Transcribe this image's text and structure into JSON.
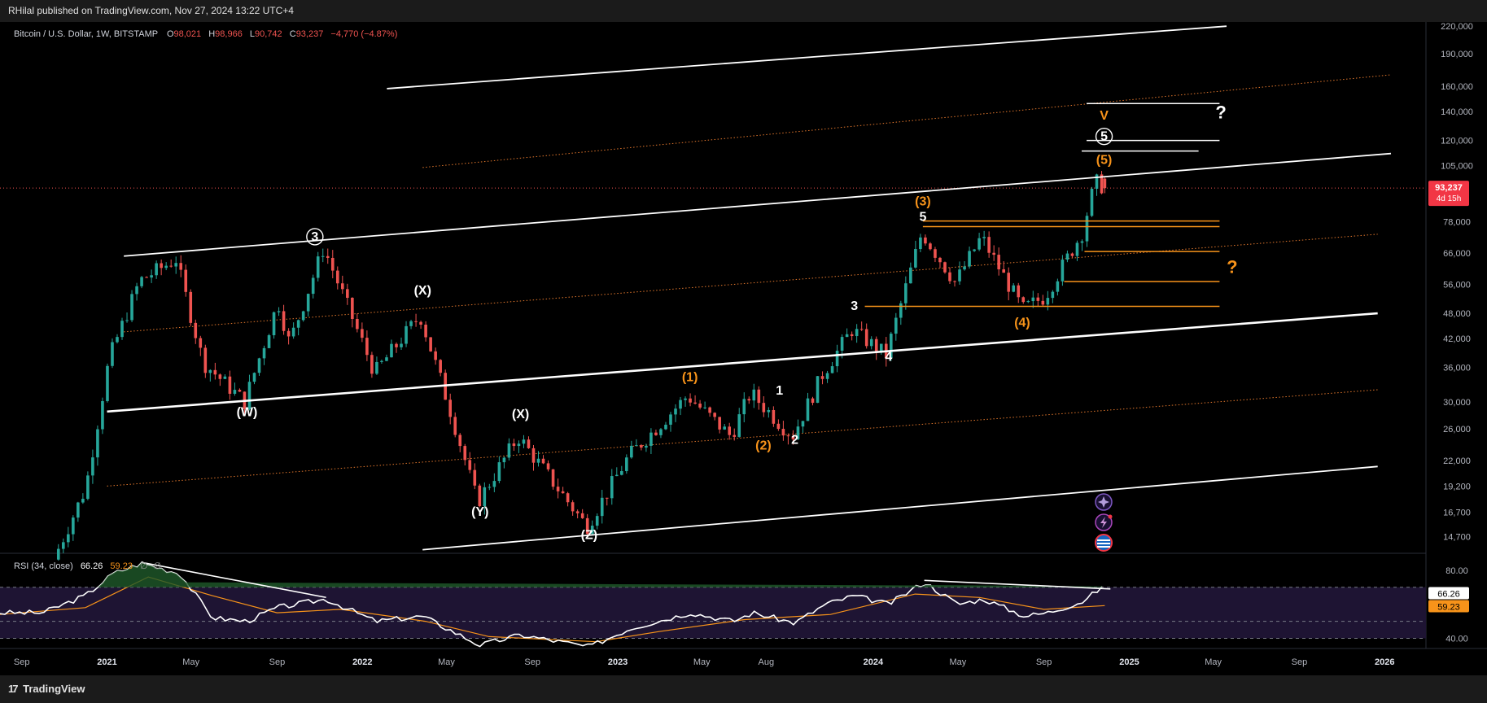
{
  "header": {
    "published": "RHilal published on TradingView.com, Nov 27, 2024 13:22 UTC+4"
  },
  "footer": {
    "brand": "TradingView",
    "logo_icon": "tradingview-logo-icon"
  },
  "legend": {
    "symbol": "Bitcoin / U.S. Dollar, 1W, BITSTAMP",
    "o_label": "O",
    "o": "98,021",
    "h_label": "H",
    "h": "98,966",
    "l_label": "L",
    "l": "90,742",
    "c_label": "C",
    "c": "93,237",
    "change": "−4,770 (−4.87%)"
  },
  "price_badge": {
    "value": "93,237",
    "countdown": "4d 15h"
  },
  "rsi_panel": {
    "label": "RSI (34, close)",
    "rsi": "66.26",
    "ma": "59.23",
    "extra1": "∅",
    "extra2": "∅",
    "rsi_badge": "66.26",
    "ma_badge": "59.23"
  },
  "colors": {
    "up": "#26a69a",
    "down": "#ef5350",
    "wave_orange": "#f7931a",
    "channel": "#ffffff",
    "dotted": "#e0762c",
    "rsi_line": "#ffffff",
    "rsi_ma": "#f7931a",
    "badge_red": "#f23645"
  },
  "icons": [
    "event-crypto-icon",
    "event-lightning-icon",
    "event-us-flag-icon"
  ],
  "chart_data": {
    "type": "candlestick",
    "symbol": "Bitcoin / U.S. Dollar",
    "interval": "1W",
    "y_scale": "log",
    "ylim": [
      13500,
      225000
    ],
    "x_range": [
      "2020-08-01",
      "2026-03-01"
    ],
    "y_ticks": [
      "220,000",
      "190,000",
      "160,000",
      "140,000",
      "120,000",
      "105,000",
      "93,237",
      "78,000",
      "66,000",
      "56,000",
      "48,000",
      "42,000",
      "36,000",
      "30,000",
      "26,000",
      "22,000",
      "19,200",
      "16,700",
      "14,700"
    ],
    "x_ticks": [
      "Sep",
      "2021",
      "May",
      "Sep",
      "2022",
      "May",
      "Sep",
      "2023",
      "May",
      "Aug",
      "2024",
      "May",
      "Sep",
      "2025",
      "May",
      "Sep",
      "2026"
    ],
    "price_path": [
      {
        "date": "2020-10-20",
        "price": 13000
      },
      {
        "date": "2020-12-05",
        "price": 19000
      },
      {
        "date": "2021-01-08",
        "price": 38000
      },
      {
        "date": "2021-02-20",
        "price": 57000
      },
      {
        "date": "2021-04-13",
        "price": 64000
      },
      {
        "date": "2021-05-22",
        "price": 37000
      },
      {
        "date": "2021-07-20",
        "price": 30000
      },
      {
        "date": "2021-09-06",
        "price": 51000
      },
      {
        "date": "2021-09-22",
        "price": 41000
      },
      {
        "date": "2021-11-10",
        "price": 68000
      },
      {
        "date": "2022-01-22",
        "price": 35000
      },
      {
        "date": "2022-03-28",
        "price": 47500
      },
      {
        "date": "2022-05-12",
        "price": 28000
      },
      {
        "date": "2022-06-18",
        "price": 17600
      },
      {
        "date": "2022-08-15",
        "price": 25000
      },
      {
        "date": "2022-11-21",
        "price": 15500
      },
      {
        "date": "2023-01-20",
        "price": 22500
      },
      {
        "date": "2023-04-14",
        "price": 31000
      },
      {
        "date": "2023-06-15",
        "price": 25000
      },
      {
        "date": "2023-07-13",
        "price": 31500
      },
      {
        "date": "2023-09-11",
        "price": 25000
      },
      {
        "date": "2023-10-25",
        "price": 35000
      },
      {
        "date": "2023-12-05",
        "price": 44000
      },
      {
        "date": "2024-01-23",
        "price": 38500
      },
      {
        "date": "2024-03-14",
        "price": 73800
      },
      {
        "date": "2024-05-01",
        "price": 56500
      },
      {
        "date": "2024-06-07",
        "price": 72000
      },
      {
        "date": "2024-08-05",
        "price": 49000
      },
      {
        "date": "2024-09-06",
        "price": 52500
      },
      {
        "date": "2024-10-29",
        "price": 73600
      },
      {
        "date": "2024-11-11",
        "price": 89000
      },
      {
        "date": "2024-11-22",
        "price": 98966
      },
      {
        "date": "2024-11-27",
        "price": 93237
      }
    ],
    "last_candle": {
      "open": 98021,
      "high": 98966,
      "low": 90742,
      "close": 93237
    },
    "wave_labels": [
      {
        "text": "3",
        "style": "circled",
        "date": "2021-10-25",
        "price": 70500
      },
      {
        "text": "(W)",
        "date": "2021-07-20",
        "price": 27800
      },
      {
        "text": "(X)",
        "date": "2022-03-28",
        "price": 53000
      },
      {
        "text": "(Y)",
        "date": "2022-06-18",
        "price": 16400
      },
      {
        "text": "(X)",
        "date": "2022-08-15",
        "price": 27500
      },
      {
        "text": "(Z)",
        "date": "2022-11-21",
        "price": 14500
      },
      {
        "text": "(1)",
        "color": "orange",
        "date": "2023-04-14",
        "price": 33500
      },
      {
        "text": "(2)",
        "color": "orange",
        "date": "2023-07-28",
        "price": 23300
      },
      {
        "text": "1",
        "date": "2023-08-20",
        "price": 31200
      },
      {
        "text": "2",
        "date": "2023-09-11",
        "price": 24000
      },
      {
        "text": "3",
        "date": "2023-12-05",
        "price": 48800
      },
      {
        "text": "4",
        "date": "2024-01-23",
        "price": 37300
      },
      {
        "text": "(3)",
        "color": "orange",
        "date": "2024-03-12",
        "price": 85000
      },
      {
        "text": "5",
        "date": "2024-03-12",
        "price": 78300
      },
      {
        "text": "(4)",
        "color": "orange",
        "date": "2024-08-01",
        "price": 44700
      },
      {
        "text": "(5)",
        "color": "orange",
        "date": "2024-11-26",
        "price": 106000
      },
      {
        "text": "5",
        "style": "circled",
        "date": "2024-11-26",
        "price": 120000
      },
      {
        "text": "V",
        "color": "orange",
        "date": "2024-11-26",
        "price": 134000
      },
      {
        "text": "?",
        "date": "2025-05-12",
        "price": 135000
      },
      {
        "text": "?",
        "color": "orange",
        "date": "2025-05-28",
        "price": 59500
      }
    ],
    "channel_lines": [
      {
        "from": {
          "date": "2021-01-25",
          "price": 65000
        },
        "to": {
          "date": "2026-01-10",
          "price": 112000
        }
      },
      {
        "from": {
          "date": "2021-01-01",
          "price": 28500
        },
        "to": {
          "date": "2025-12-22",
          "price": 48000
        }
      },
      {
        "from": {
          "date": "2022-02-05",
          "price": 158000
        },
        "to": {
          "date": "2025-05-20",
          "price": 220000
        }
      },
      {
        "from": {
          "date": "2022-03-28",
          "price": 13700
        },
        "to": {
          "date": "2025-12-22",
          "price": 21300
        }
      }
    ],
    "dotted_channels": [
      {
        "from": {
          "date": "2022-03-28",
          "price": 104000
        },
        "to": {
          "date": "2026-01-10",
          "price": 170000
        }
      },
      {
        "from": {
          "date": "2021-01-25",
          "price": 43500
        },
        "to": {
          "date": "2025-12-22",
          "price": 73000
        }
      },
      {
        "from": {
          "date": "2021-01-01",
          "price": 19200
        },
        "to": {
          "date": "2025-12-22",
          "price": 32000
        }
      }
    ],
    "white_target_levels": [
      {
        "price": 146000,
        "from": "2024-11-01",
        "to": "2025-05-10"
      },
      {
        "price": 120000,
        "from": "2024-11-01",
        "to": "2025-05-10"
      },
      {
        "price": 113500,
        "from": "2024-10-25",
        "to": "2025-04-10"
      }
    ],
    "orange_levels": [
      {
        "price": 78300,
        "from": "2024-03-12",
        "to": "2025-05-10"
      },
      {
        "price": 76000,
        "from": "2024-03-12",
        "to": "2025-05-10"
      },
      {
        "price": 66600,
        "from": "2024-10-29",
        "to": "2025-05-10"
      },
      {
        "price": 56800,
        "from": "2024-09-30",
        "to": "2025-05-10"
      },
      {
        "price": 49800,
        "from": "2023-12-20",
        "to": "2025-05-10"
      }
    ],
    "last_price_line": 93237,
    "rsi": {
      "period": 34,
      "source": "close",
      "value": 66.26,
      "ma": 59.23,
      "ylim": [
        35,
        88
      ],
      "levels": [
        70,
        50,
        40
      ],
      "axis_ticks": [
        "80.00",
        "40.00"
      ],
      "points": [
        {
          "date": "2020-08-01",
          "value": 55
        },
        {
          "date": "2020-10-01",
          "value": 55
        },
        {
          "date": "2020-12-01",
          "value": 65
        },
        {
          "date": "2021-01-10",
          "value": 78
        },
        {
          "date": "2021-02-20",
          "value": 84
        },
        {
          "date": "2021-04-15",
          "value": 78
        },
        {
          "date": "2021-06-01",
          "value": 52
        },
        {
          "date": "2021-07-20",
          "value": 50
        },
        {
          "date": "2021-09-01",
          "value": 58
        },
        {
          "date": "2021-11-10",
          "value": 63
        },
        {
          "date": "2022-01-20",
          "value": 50
        },
        {
          "date": "2022-03-28",
          "value": 53
        },
        {
          "date": "2022-06-18",
          "value": 36
        },
        {
          "date": "2022-08-15",
          "value": 42
        },
        {
          "date": "2022-11-21",
          "value": 35
        },
        {
          "date": "2023-01-20",
          "value": 46
        },
        {
          "date": "2023-04-15",
          "value": 55
        },
        {
          "date": "2023-06-15",
          "value": 50
        },
        {
          "date": "2023-07-13",
          "value": 55
        },
        {
          "date": "2023-09-11",
          "value": 49
        },
        {
          "date": "2023-10-25",
          "value": 60
        },
        {
          "date": "2023-12-05",
          "value": 65
        },
        {
          "date": "2024-01-23",
          "value": 60
        },
        {
          "date": "2024-03-14",
          "value": 73
        },
        {
          "date": "2024-05-01",
          "value": 60
        },
        {
          "date": "2024-06-07",
          "value": 63
        },
        {
          "date": "2024-08-05",
          "value": 53
        },
        {
          "date": "2024-09-06",
          "value": 55
        },
        {
          "date": "2024-10-29",
          "value": 62
        },
        {
          "date": "2024-11-22",
          "value": 70
        },
        {
          "date": "2024-11-27",
          "value": 66.26
        }
      ],
      "ma_points": [
        {
          "date": "2020-08-01",
          "value": 54
        },
        {
          "date": "2020-12-01",
          "value": 58
        },
        {
          "date": "2021-03-01",
          "value": 76
        },
        {
          "date": "2021-06-01",
          "value": 65
        },
        {
          "date": "2021-09-01",
          "value": 55
        },
        {
          "date": "2021-12-01",
          "value": 57
        },
        {
          "date": "2022-04-01",
          "value": 50
        },
        {
          "date": "2022-07-01",
          "value": 41
        },
        {
          "date": "2022-12-01",
          "value": 38
        },
        {
          "date": "2023-03-01",
          "value": 44
        },
        {
          "date": "2023-07-01",
          "value": 51
        },
        {
          "date": "2023-11-01",
          "value": 54
        },
        {
          "date": "2024-03-01",
          "value": 66
        },
        {
          "date": "2024-06-01",
          "value": 64
        },
        {
          "date": "2024-09-01",
          "value": 57
        },
        {
          "date": "2024-11-27",
          "value": 59.23
        }
      ],
      "divergence_lines": [
        {
          "from": {
            "date": "2021-02-20",
            "value": 84.5
          },
          "to": {
            "date": "2021-11-10",
            "value": 64
          }
        },
        {
          "from": {
            "date": "2024-03-14",
            "value": 74
          },
          "to": {
            "date": "2024-12-05",
            "value": 69
          }
        }
      ]
    }
  }
}
